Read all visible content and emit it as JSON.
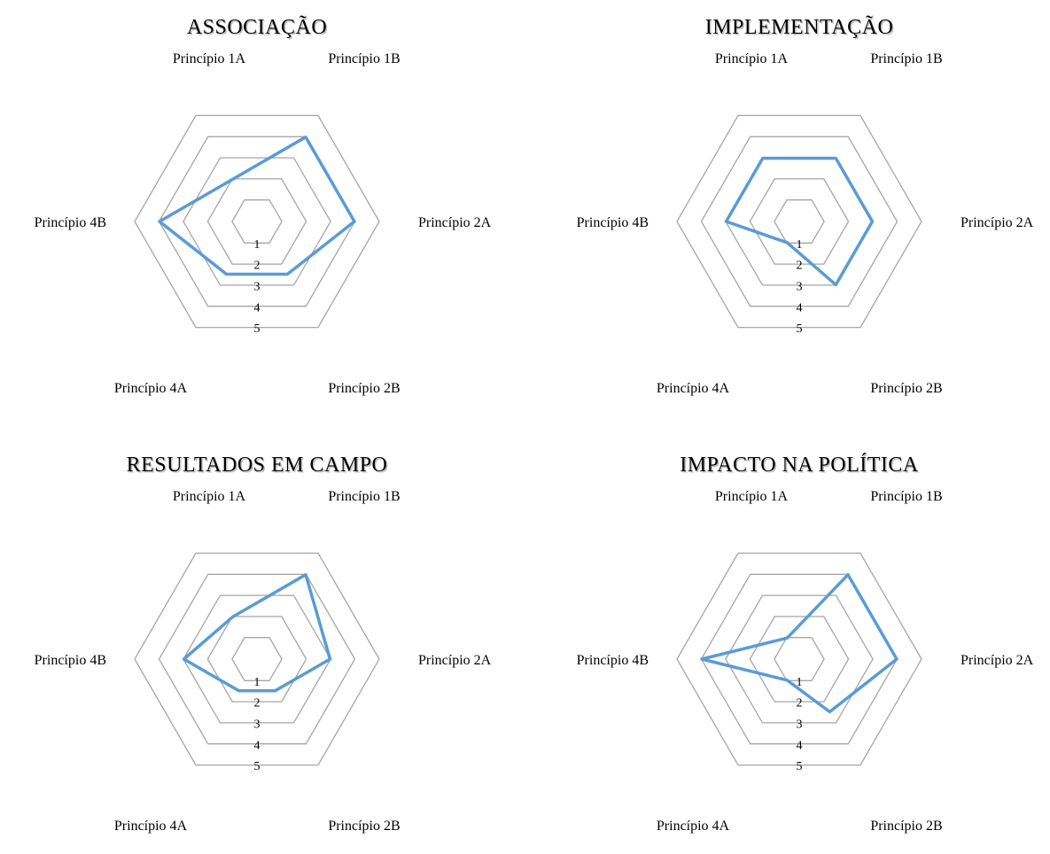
{
  "chart_data": [
    {
      "type": "radar",
      "title": "ASSOCIAÇÃO",
      "categories": [
        "Princípio 1A",
        "Princípio 1B",
        "Princípio 2A",
        "Princípio 2B",
        "Princípio 4A",
        "Princípio 4B"
      ],
      "ticks": [
        "1",
        "2",
        "3",
        "4",
        "5"
      ],
      "rlim": [
        1,
        5
      ],
      "grid": true,
      "series": [
        {
          "values": [
            2,
            4,
            4,
            2.5,
            2.5,
            4
          ],
          "color": "#5b9bd5"
        }
      ]
    },
    {
      "type": "radar",
      "title": "IMPLEMENTAÇÃO",
      "categories": [
        "Princípio 1A",
        "Princípio 1B",
        "Princípio 2A",
        "Princípio 2B",
        "Princípio 4A",
        "Princípio 4B"
      ],
      "ticks": [
        "1",
        "2",
        "3",
        "4",
        "5"
      ],
      "rlim": [
        1,
        5
      ],
      "grid": true,
      "series": [
        {
          "values": [
            3,
            3,
            3,
            3,
            1,
            3
          ],
          "color": "#5b9bd5"
        }
      ]
    },
    {
      "type": "radar",
      "title": "RESULTADOS EM CAMPO",
      "categories": [
        "Princípio 1A",
        "Princípio 1B",
        "Princípio 2A",
        "Princípio 2B",
        "Princípio 4A",
        "Princípio 4B"
      ],
      "ticks": [
        "1",
        "2",
        "3",
        "4",
        "5"
      ],
      "rlim": [
        1,
        5
      ],
      "grid": true,
      "series": [
        {
          "values": [
            2,
            4,
            3,
            1.5,
            1.5,
            3
          ],
          "color": "#5b9bd5"
        }
      ]
    },
    {
      "type": "radar",
      "title": "IMPACTO NA POLÍTICA",
      "categories": [
        "Princípio 1A",
        "Princípio 1B",
        "Princípio 2A",
        "Princípio 2B",
        "Princípio 4A",
        "Princípio 4B"
      ],
      "ticks": [
        "1",
        "2",
        "3",
        "4",
        "5"
      ],
      "rlim": [
        1,
        5
      ],
      "grid": true,
      "series": [
        {
          "values": [
            1,
            4,
            4,
            2.5,
            1,
            4
          ],
          "color": "#5b9bd5"
        }
      ]
    }
  ]
}
